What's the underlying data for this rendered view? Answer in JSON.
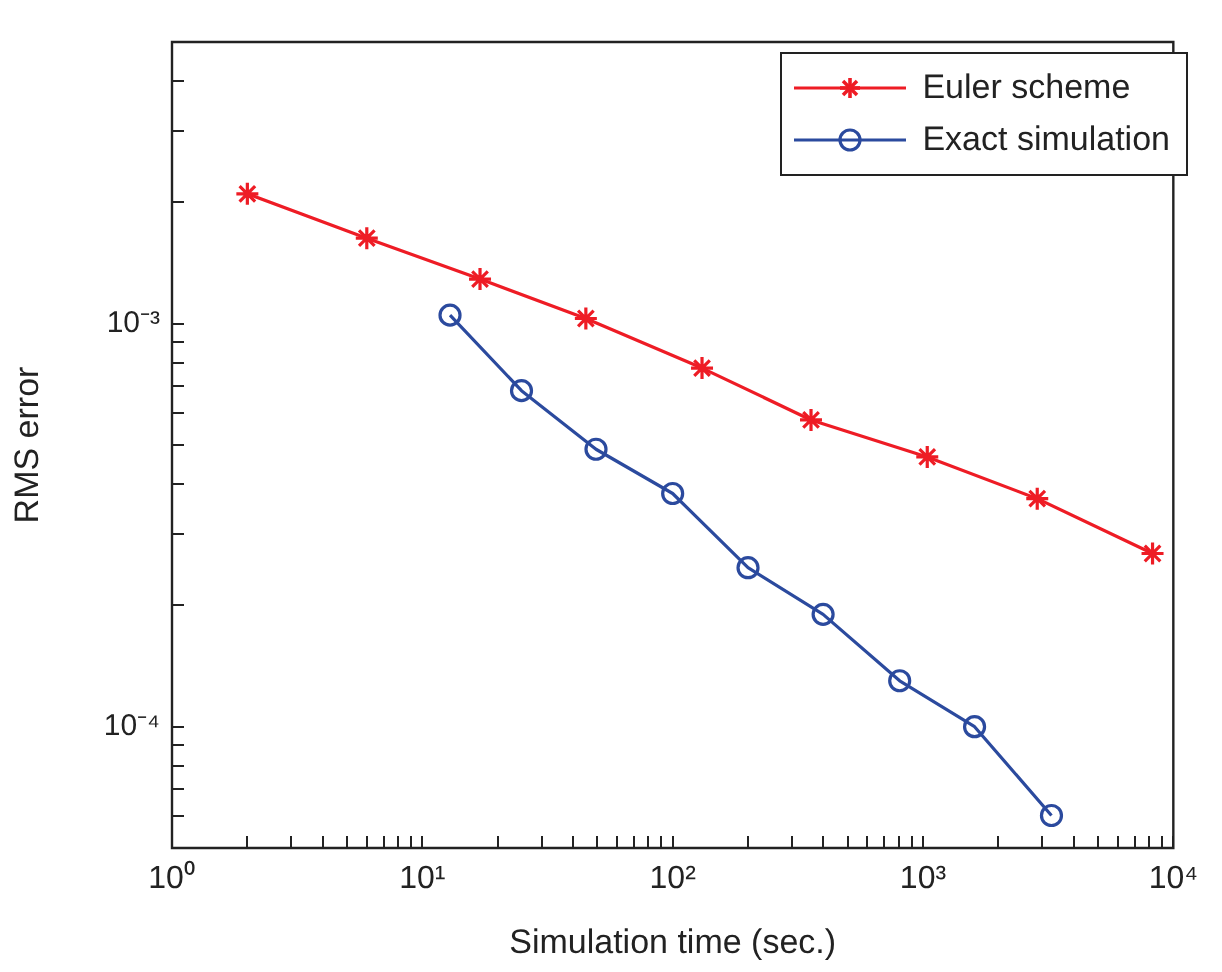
{
  "chart_data": {
    "type": "line",
    "xlabel": "Simulation time (sec.)",
    "ylabel": "RMS error",
    "log": "xy",
    "grid": false,
    "legend": "top right",
    "xlim": [
      1,
      10000
    ],
    "ylim": [
      5e-05,
      0.005
    ],
    "xticks": [
      {
        "value": 1,
        "label": "10⁰"
      },
      {
        "value": 2,
        "label": null
      },
      {
        "value": 3,
        "label": null
      },
      {
        "value": 4,
        "label": null
      },
      {
        "value": 5,
        "label": null
      },
      {
        "value": 6,
        "label": null
      },
      {
        "value": 7,
        "label": null
      },
      {
        "value": 8,
        "label": null
      },
      {
        "value": 9,
        "label": null
      },
      {
        "value": 10,
        "label": "10¹"
      },
      {
        "value": 20,
        "label": null
      },
      {
        "value": 30,
        "label": null
      },
      {
        "value": 40,
        "label": null
      },
      {
        "value": 50,
        "label": null
      },
      {
        "value": 60,
        "label": null
      },
      {
        "value": 70,
        "label": null
      },
      {
        "value": 80,
        "label": null
      },
      {
        "value": 90,
        "label": null
      },
      {
        "value": 100,
        "label": "10²"
      },
      {
        "value": 200,
        "label": null
      },
      {
        "value": 300,
        "label": null
      },
      {
        "value": 400,
        "label": null
      },
      {
        "value": 500,
        "label": null
      },
      {
        "value": 600,
        "label": null
      },
      {
        "value": 700,
        "label": null
      },
      {
        "value": 800,
        "label": null
      },
      {
        "value": 900,
        "label": null
      },
      {
        "value": 1000,
        "label": "10³"
      },
      {
        "value": 2000,
        "label": null
      },
      {
        "value": 3000,
        "label": null
      },
      {
        "value": 4000,
        "label": null
      },
      {
        "value": 5000,
        "label": null
      },
      {
        "value": 6000,
        "label": null
      },
      {
        "value": 7000,
        "label": null
      },
      {
        "value": 8000,
        "label": null
      },
      {
        "value": 9000,
        "label": null
      },
      {
        "value": 10000,
        "label": "10⁴"
      }
    ],
    "yticks": [
      {
        "value": 6e-05,
        "label": null
      },
      {
        "value": 7e-05,
        "label": null
      },
      {
        "value": 8e-05,
        "label": null
      },
      {
        "value": 9e-05,
        "label": null
      },
      {
        "value": 0.0001,
        "label": "10⁻⁴"
      },
      {
        "value": 0.0002,
        "label": null
      },
      {
        "value": 0.0003,
        "label": null
      },
      {
        "value": 0.0004,
        "label": null
      },
      {
        "value": 0.0005,
        "label": null
      },
      {
        "value": 0.0006,
        "label": null
      },
      {
        "value": 0.0007,
        "label": null
      },
      {
        "value": 0.0008,
        "label": null
      },
      {
        "value": 0.0009,
        "label": null
      },
      {
        "value": 0.001,
        "label": "10⁻³"
      },
      {
        "value": 0.002,
        "label": null
      },
      {
        "value": 0.003,
        "label": null
      },
      {
        "value": 0.004,
        "label": null
      }
    ],
    "series": [
      {
        "name": "Euler scheme",
        "color": "#ee1c25",
        "marker": "cross",
        "x": [
          2,
          6,
          17,
          45,
          131,
          357,
          1040,
          2860,
          8260
        ],
        "values": [
          0.0021,
          0.00163,
          0.00129,
          0.00103,
          0.000776,
          0.000577,
          0.000467,
          0.000368,
          0.000269
        ]
      },
      {
        "name": "Exact simulation",
        "color": "#2b4a9e",
        "marker": "circle",
        "x": [
          12.9,
          24.9,
          49.4,
          100,
          200,
          399,
          807,
          1607,
          3260
        ],
        "values": [
          0.00105,
          0.000682,
          0.000488,
          0.000379,
          0.000248,
          0.00019,
          0.00013,
          0.0001,
          6.02e-05
        ]
      }
    ]
  }
}
